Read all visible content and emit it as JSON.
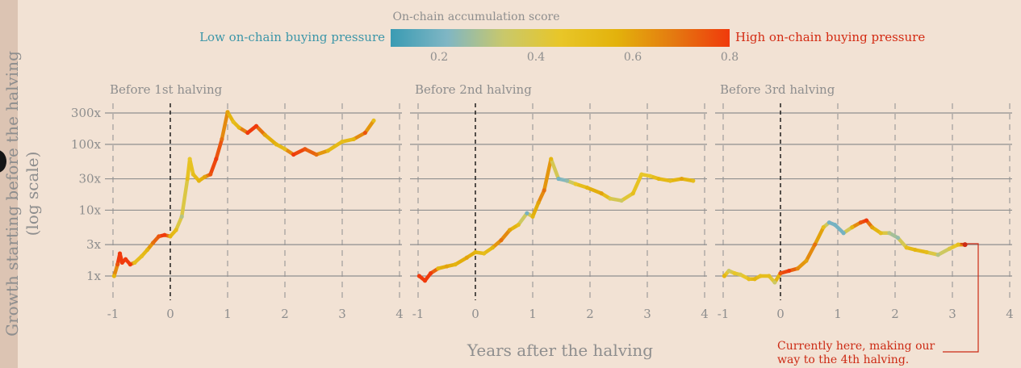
{
  "colors": {
    "background": "#f2e2d4",
    "text": "#8e8e8e",
    "grid": "#8f8f8f",
    "low_label": "#3c96a8",
    "high_label": "#d32a12",
    "annotation": "#cc2a14",
    "gradient": [
      "#3a9bb3",
      "#7fb6c4",
      "#c9c86b",
      "#e8c628",
      "#e3b20c",
      "#e47a10",
      "#f03a0c"
    ]
  },
  "colorbar": {
    "title": "On-chain accumulation score",
    "low_label": "Low on-chain buying pressure",
    "high_label": "High on-chain buying pressure",
    "ticks": [
      "0.2",
      "0.4",
      "0.6",
      "0.8"
    ]
  },
  "ylabel_line1": "Growth starting before the halving",
  "ylabel_line2": "(log scale)",
  "xlabel": "Years after the halving",
  "annotation": {
    "line1": "Currently here, making our",
    "line2": "way  to the 4th halving."
  },
  "chart_data": {
    "type": "line",
    "y_scale": "log",
    "ytick_labels": [
      "300x",
      "100x",
      "30x",
      "10x",
      "3x",
      "1x"
    ],
    "ytick_values": [
      300,
      100,
      30,
      10,
      3,
      1
    ],
    "ylim": [
      1,
      300
    ],
    "xlim": [
      -1,
      4
    ],
    "xticks": [
      "-1",
      "0",
      "1",
      "2",
      "3",
      "4"
    ],
    "halving_marker_x": 0,
    "color_encoding": "On-chain accumulation score",
    "colorbar_range": [
      0.1,
      0.8
    ],
    "panels": [
      {
        "title": "Before 1st halving",
        "points": [
          [
            -0.98,
            1.0,
            0.55
          ],
          [
            -0.92,
            1.5,
            0.75
          ],
          [
            -0.88,
            2.2,
            0.85
          ],
          [
            -0.84,
            1.6,
            0.9
          ],
          [
            -0.78,
            1.8,
            0.85
          ],
          [
            -0.7,
            1.5,
            0.8
          ],
          [
            -0.62,
            1.6,
            0.5
          ],
          [
            -0.5,
            2.0,
            0.5
          ],
          [
            -0.4,
            2.5,
            0.55
          ],
          [
            -0.3,
            3.2,
            0.7
          ],
          [
            -0.2,
            4.0,
            0.75
          ],
          [
            -0.1,
            4.2,
            0.85
          ],
          [
            0.0,
            4.0,
            0.55
          ],
          [
            0.1,
            5.0,
            0.5
          ],
          [
            0.2,
            8.0,
            0.3
          ],
          [
            0.3,
            30.0,
            0.5
          ],
          [
            0.34,
            60.0,
            0.45
          ],
          [
            0.4,
            35.0,
            0.5
          ],
          [
            0.5,
            28.0,
            0.55
          ],
          [
            0.6,
            32.0,
            0.6
          ],
          [
            0.7,
            35.0,
            0.75
          ],
          [
            0.8,
            60.0,
            0.8
          ],
          [
            0.9,
            120.0,
            0.7
          ],
          [
            1.0,
            310.0,
            0.6
          ],
          [
            1.1,
            220.0,
            0.5
          ],
          [
            1.2,
            180.0,
            0.55
          ],
          [
            1.35,
            150.0,
            0.8
          ],
          [
            1.5,
            190.0,
            0.8
          ],
          [
            1.65,
            140.0,
            0.6
          ],
          [
            1.85,
            100.0,
            0.55
          ],
          [
            2.0,
            85.0,
            0.5
          ],
          [
            2.15,
            70.0,
            0.8
          ],
          [
            2.35,
            85.0,
            0.75
          ],
          [
            2.55,
            70.0,
            0.7
          ],
          [
            2.75,
            80.0,
            0.55
          ],
          [
            3.0,
            110.0,
            0.5
          ],
          [
            3.2,
            120.0,
            0.55
          ],
          [
            3.4,
            150.0,
            0.75
          ],
          [
            3.55,
            230.0,
            0.5
          ]
        ]
      },
      {
        "title": "Before 2nd halving",
        "points": [
          [
            -0.98,
            1.0,
            0.8
          ],
          [
            -0.88,
            0.85,
            0.85
          ],
          [
            -0.78,
            1.1,
            0.9
          ],
          [
            -0.65,
            1.3,
            0.55
          ],
          [
            -0.5,
            1.4,
            0.6
          ],
          [
            -0.35,
            1.5,
            0.55
          ],
          [
            -0.15,
            1.9,
            0.6
          ],
          [
            0.0,
            2.3,
            0.55
          ],
          [
            0.15,
            2.2,
            0.5
          ],
          [
            0.3,
            2.7,
            0.55
          ],
          [
            0.45,
            3.5,
            0.7
          ],
          [
            0.6,
            5.0,
            0.6
          ],
          [
            0.75,
            6.0,
            0.5
          ],
          [
            0.9,
            9.0,
            0.2
          ],
          [
            1.0,
            8.0,
            0.55
          ],
          [
            1.1,
            13.0,
            0.6
          ],
          [
            1.2,
            20.0,
            0.7
          ],
          [
            1.32,
            60.0,
            0.55
          ],
          [
            1.45,
            30.0,
            0.2
          ],
          [
            1.6,
            28.0,
            0.25
          ],
          [
            1.75,
            25.0,
            0.45
          ],
          [
            1.95,
            22.0,
            0.55
          ],
          [
            2.2,
            18.0,
            0.6
          ],
          [
            2.35,
            15.0,
            0.4
          ],
          [
            2.55,
            14.0,
            0.35
          ],
          [
            2.75,
            18.0,
            0.5
          ],
          [
            2.9,
            35.0,
            0.45
          ],
          [
            3.05,
            33.0,
            0.45
          ],
          [
            3.2,
            30.0,
            0.55
          ],
          [
            3.4,
            28.0,
            0.5
          ],
          [
            3.6,
            30.0,
            0.6
          ],
          [
            3.8,
            28.0,
            0.5
          ]
        ]
      },
      {
        "title": "Before 3rd halving",
        "points": [
          [
            -0.98,
            1.0,
            0.55
          ],
          [
            -0.9,
            1.2,
            0.35
          ],
          [
            -0.8,
            1.1,
            0.45
          ],
          [
            -0.7,
            1.05,
            0.4
          ],
          [
            -0.55,
            0.9,
            0.5
          ],
          [
            -0.45,
            0.9,
            0.55
          ],
          [
            -0.35,
            1.0,
            0.5
          ],
          [
            -0.2,
            1.0,
            0.5
          ],
          [
            -0.1,
            0.8,
            0.35
          ],
          [
            0.0,
            1.1,
            0.75
          ],
          [
            0.15,
            1.2,
            0.8
          ],
          [
            0.3,
            1.3,
            0.65
          ],
          [
            0.45,
            1.7,
            0.6
          ],
          [
            0.6,
            3.0,
            0.7
          ],
          [
            0.75,
            5.5,
            0.5
          ],
          [
            0.85,
            6.5,
            0.2
          ],
          [
            0.95,
            6.0,
            0.2
          ],
          [
            1.1,
            4.5,
            0.2
          ],
          [
            1.25,
            5.5,
            0.55
          ],
          [
            1.4,
            6.5,
            0.75
          ],
          [
            1.5,
            7.0,
            0.8
          ],
          [
            1.6,
            5.5,
            0.6
          ],
          [
            1.75,
            4.5,
            0.5
          ],
          [
            1.9,
            4.5,
            0.3
          ],
          [
            2.05,
            3.8,
            0.25
          ],
          [
            2.2,
            2.7,
            0.5
          ],
          [
            2.35,
            2.5,
            0.55
          ],
          [
            2.55,
            2.3,
            0.5
          ],
          [
            2.75,
            2.1,
            0.3
          ],
          [
            2.95,
            2.6,
            0.4
          ],
          [
            3.1,
            3.0,
            0.5
          ],
          [
            3.22,
            3.0,
            0.8
          ]
        ],
        "current_marker": [
          3.22,
          3.0
        ]
      }
    ]
  }
}
